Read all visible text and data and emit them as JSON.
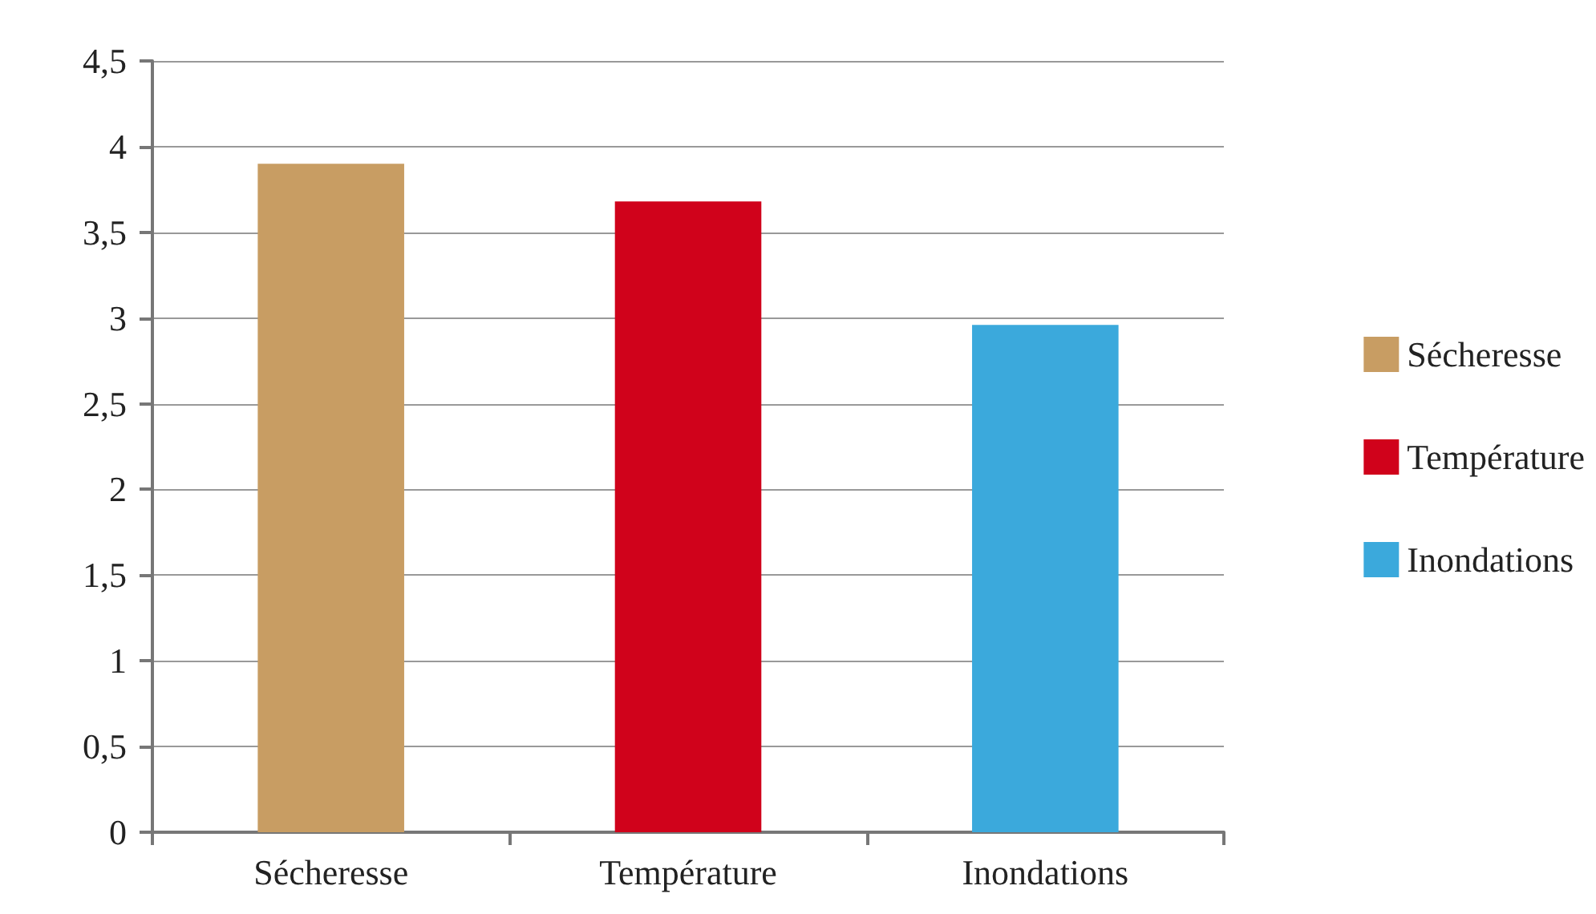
{
  "chart_data": {
    "type": "bar",
    "categories": [
      "Sécheresse",
      "Température",
      "Inondations"
    ],
    "series": [
      {
        "name": "Sécheresse",
        "color": "#c89d63",
        "values": [
          3.9,
          null,
          null
        ]
      },
      {
        "name": "Température",
        "color": "#d0021b",
        "values": [
          null,
          3.68,
          null
        ]
      },
      {
        "name": "Inondations",
        "color": "#3ba9dc",
        "values": [
          null,
          null,
          2.96
        ]
      }
    ],
    "ylim": [
      0,
      4.5
    ],
    "yticks": [
      0,
      {
        "value": 0.5,
        "label": "0,5"
      },
      1,
      {
        "value": 1.5,
        "label": "1,5"
      },
      2,
      {
        "value": 2.5,
        "label": "2,5"
      },
      3,
      {
        "value": 3.5,
        "label": "3,5"
      },
      4,
      {
        "value": 4.5,
        "label": "4,5"
      }
    ],
    "grid": "y",
    "legend": "right"
  }
}
